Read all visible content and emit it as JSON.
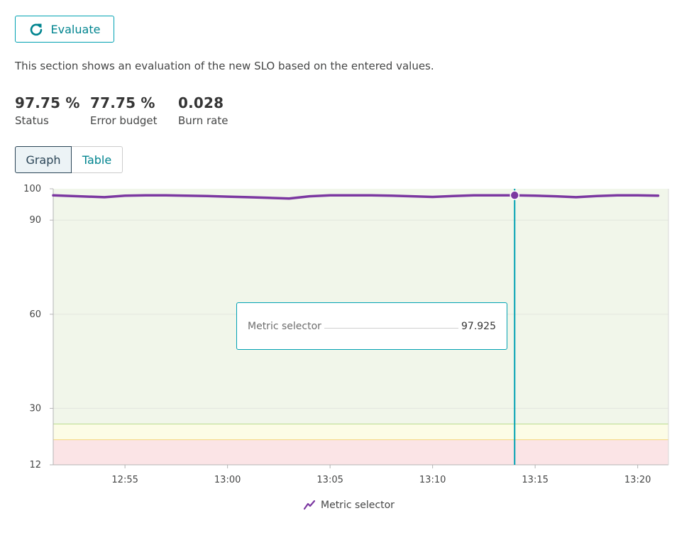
{
  "evaluate_button": {
    "label": "Evaluate",
    "icon": "refresh-icon"
  },
  "description": "This section shows an evaluation of the new SLO based on the entered values.",
  "stats": [
    {
      "value": "97.75 %",
      "label": "Status"
    },
    {
      "value": "77.75 %",
      "label": "Error budget"
    },
    {
      "value": "0.028",
      "label": "Burn rate"
    }
  ],
  "tabs": [
    {
      "label": "Graph",
      "active": true
    },
    {
      "label": "Table",
      "active": false
    }
  ],
  "tooltip": {
    "label": "Metric selector",
    "value": "97.925"
  },
  "legend": {
    "label": "Metric selector",
    "icon": "line-series-icon"
  },
  "colors": {
    "accent": "#00a1b2",
    "series": "#7c38a1",
    "success_band": "#f1f6ea",
    "warning_band": "#fcfce6",
    "error_band": "#fbe4e6",
    "cursor": "#00a1b2"
  },
  "chart_data": {
    "type": "line",
    "title": "",
    "xlabel": "",
    "ylabel": "",
    "ylim": [
      12,
      100
    ],
    "yticks": [
      100,
      90,
      60,
      30,
      12
    ],
    "xticks": [
      "12:55",
      "13:00",
      "13:05",
      "13:10",
      "13:15",
      "13:20"
    ],
    "xlim": [
      "12:51.5",
      "13:21.5"
    ],
    "grid": true,
    "bands": [
      {
        "name": "success",
        "from": 25,
        "to": 100
      },
      {
        "name": "warning",
        "from": 20,
        "to": 25
      },
      {
        "name": "error",
        "from": 12,
        "to": 20
      }
    ],
    "cursor_x": "13:14",
    "series": [
      {
        "name": "Metric selector",
        "x": [
          "12:51.5",
          "12:54",
          "12:55",
          "12:56",
          "12:57",
          "12:58",
          "12:59",
          "13:00",
          "13:01",
          "13:02",
          "13:03",
          "13:04",
          "13:05",
          "13:06",
          "13:07",
          "13:08",
          "13:09",
          "13:10",
          "13:11",
          "13:12",
          "13:13",
          "13:14",
          "13:15",
          "13:16",
          "13:17",
          "13:18",
          "13:19",
          "13:20",
          "13:21"
        ],
        "y": [
          97.9,
          97.3,
          97.8,
          97.9,
          97.9,
          97.8,
          97.7,
          97.5,
          97.3,
          97.1,
          96.9,
          97.6,
          97.9,
          97.9,
          97.9,
          97.8,
          97.6,
          97.4,
          97.7,
          97.9,
          97.9,
          97.925,
          97.8,
          97.6,
          97.3,
          97.7,
          97.9,
          97.9,
          97.8
        ]
      }
    ]
  }
}
